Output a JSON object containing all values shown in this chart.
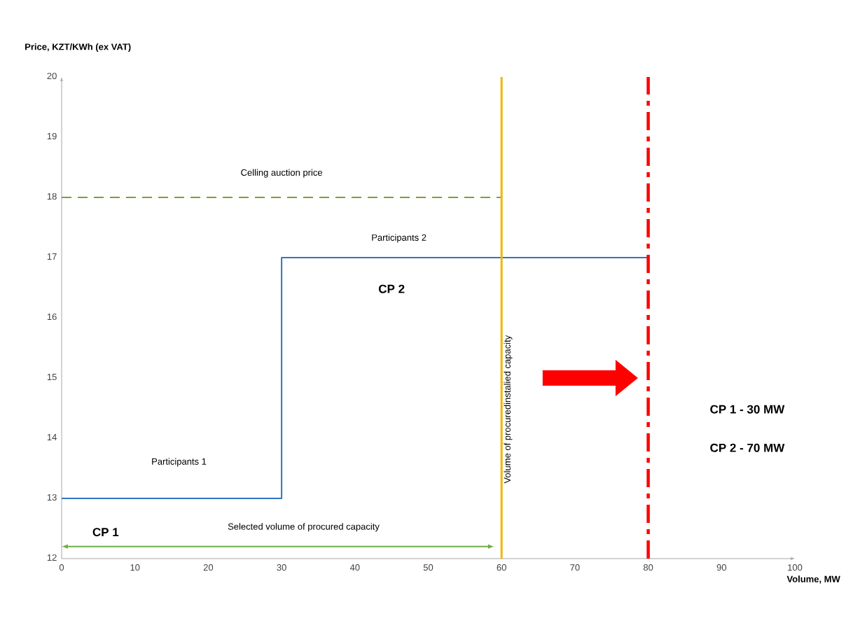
{
  "chart_data": {
    "type": "step",
    "xlabel": "Volume, MW",
    "ylabel": "Price, KZT/KWh (ex VAT)",
    "xlim": [
      0,
      100
    ],
    "xticks": [
      0,
      10,
      20,
      30,
      40,
      50,
      60,
      70,
      80,
      90,
      100
    ],
    "ylim": [
      12,
      20
    ],
    "yticks": [
      12,
      13,
      14,
      15,
      16,
      17,
      18,
      19,
      20
    ],
    "series": [
      {
        "color": "#2e75c0",
        "x": [
          0,
          30,
          80
        ],
        "values": [
          13,
          17,
          17
        ],
        "line_style": "solid"
      },
      {
        "color": "#77a23a",
        "type": "line",
        "x": [
          0,
          60
        ],
        "values": [
          18,
          18
        ],
        "line_style": "dashed"
      }
    ],
    "ref_lines": [
      {
        "axis": "x",
        "value": 60,
        "label": "Volume of procuredinstalied capacity",
        "color": "#f5b400",
        "line_style": "solid"
      },
      {
        "axis": "x",
        "value": 80,
        "color": "#ff0000",
        "line_style": "dashdot"
      }
    ],
    "annotations": [
      "Celling auction price",
      "Participants 2",
      "CP 2",
      "Participants 1",
      "CP 1",
      "Selected volume of procured capacity",
      "CP 1 - 30 MW",
      "CP 2 - 70 MW"
    ]
  }
}
